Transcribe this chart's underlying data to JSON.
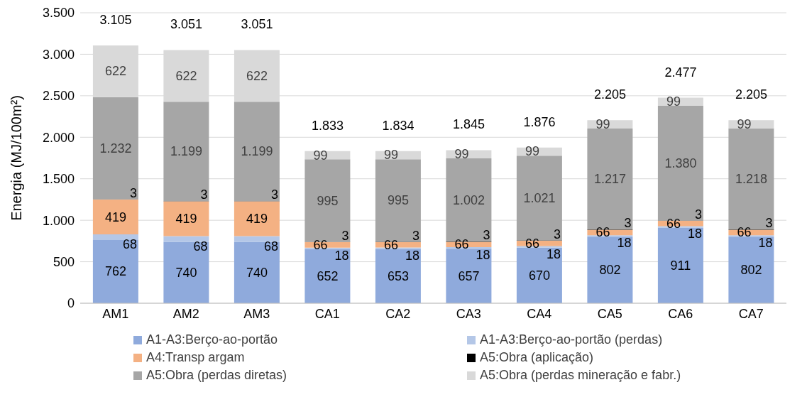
{
  "chart_data": {
    "type": "bar",
    "stacked": true,
    "ylabel": "Energia (MJ/100m²)",
    "categories": [
      "AM1",
      "AM2",
      "AM3",
      "CA1",
      "CA2",
      "CA3",
      "CA4",
      "CA5",
      "CA6",
      "CA7"
    ],
    "series": [
      {
        "name": "A1-A3:Berço-ao-portão",
        "color": "#8faadc",
        "values": [
          762,
          740,
          740,
          652,
          653,
          657,
          670,
          802,
          911,
          802
        ],
        "value_labels": [
          "762",
          "740",
          "740",
          "652",
          "653",
          "657",
          "670",
          "802",
          "911",
          "802"
        ]
      },
      {
        "name": "A1-A3:Berço-ao-portão (perdas)",
        "color": "#b4c7e7",
        "values": [
          68,
          68,
          68,
          18,
          18,
          18,
          18,
          18,
          18,
          18
        ],
        "value_labels": [
          "68",
          "68",
          "68",
          "18",
          "18",
          "18",
          "18",
          "18",
          "18",
          "18"
        ]
      },
      {
        "name": "A4:Transp argam",
        "color": "#f4b183",
        "values": [
          419,
          419,
          419,
          66,
          66,
          66,
          66,
          66,
          66,
          66
        ],
        "value_labels": [
          "419",
          "419",
          "419",
          "66",
          "66",
          "66",
          "66",
          "66",
          "66",
          "66"
        ]
      },
      {
        "name": "A5:Obra (aplicação)",
        "color": "#000000",
        "values": [
          3,
          3,
          3,
          3,
          3,
          3,
          3,
          3,
          3,
          3
        ],
        "value_labels": [
          "3",
          "3",
          "3",
          "3",
          "3",
          "3",
          "3",
          "3",
          "3",
          "3"
        ]
      },
      {
        "name": "A5:Obra (perdas diretas)",
        "color": "#a6a6a6",
        "values": [
          1232,
          1199,
          1199,
          995,
          995,
          1002,
          1021,
          1217,
          1380,
          1218
        ],
        "value_labels": [
          "1.232",
          "1.199",
          "1.199",
          "995",
          "995",
          "1.002",
          "1.021",
          "1.217",
          "1.380",
          "1.218"
        ]
      },
      {
        "name": "A5:Obra (perdas mineração e fabr.)",
        "color": "#d9d9d9",
        "values": [
          622,
          622,
          622,
          99,
          99,
          99,
          99,
          99,
          99,
          99
        ],
        "value_labels": [
          "622",
          "622",
          "622",
          "99",
          "99",
          "99",
          "99",
          "99",
          "99",
          "99"
        ]
      }
    ],
    "totals": [
      "3.105",
      "3.051",
      "3.051",
      "1.833",
      "1.834",
      "1.845",
      "1.876",
      "2.205",
      "2.477",
      "2.205"
    ],
    "ylim": [
      0,
      3500
    ],
    "yticks": [
      {
        "value": 0,
        "label": "0"
      },
      {
        "value": 500,
        "label": "500"
      },
      {
        "value": 1000,
        "label": "1.000"
      },
      {
        "value": 1500,
        "label": "1.500"
      },
      {
        "value": 2000,
        "label": "2.000"
      },
      {
        "value": 2500,
        "label": "2.500"
      },
      {
        "value": 3000,
        "label": "3.000"
      },
      {
        "value": 3500,
        "label": "3.500"
      }
    ],
    "grid": "y",
    "legend": "bottom"
  }
}
